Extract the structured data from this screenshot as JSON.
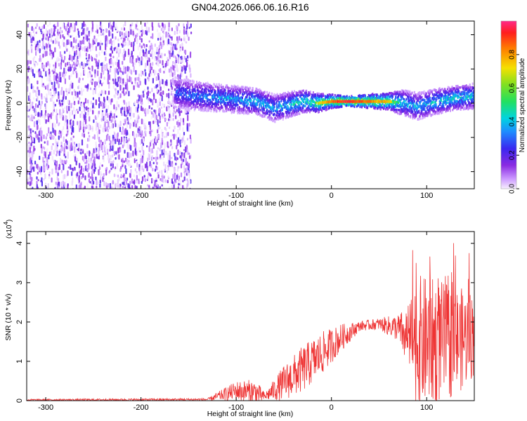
{
  "title": "GN04.2026.066.06.16.R16",
  "chart_data": [
    {
      "type": "heatmap",
      "xlabel": "Height of straight line (km)",
      "ylabel": "Frequency (Hz)",
      "xlim": [
        -320,
        150
      ],
      "ylim": [
        -50,
        48
      ],
      "xticks": [
        -300,
        -200,
        -100,
        0,
        100
      ],
      "yticks": [
        -40,
        -20,
        0,
        20,
        40
      ],
      "colorbar": {
        "label": "Normalized spectral amplitude",
        "range": [
          0,
          1
        ],
        "ticks": [
          "0.0",
          "0.2",
          "0.4",
          "0.6",
          "0.8"
        ]
      },
      "noise_region": [
        -320,
        -148
      ],
      "signal_ridge": [
        {
          "x": -165,
          "y": 6,
          "amp": 0.35
        },
        {
          "x": -140,
          "y": 4,
          "amp": 0.4
        },
        {
          "x": -120,
          "y": 3,
          "amp": 0.45
        },
        {
          "x": -100,
          "y": 2,
          "amp": 0.45
        },
        {
          "x": -80,
          "y": 1,
          "amp": 0.5
        },
        {
          "x": -60,
          "y": -3,
          "amp": 0.45
        },
        {
          "x": -45,
          "y": -1,
          "amp": 0.5
        },
        {
          "x": -30,
          "y": 1,
          "amp": 0.6
        },
        {
          "x": -15,
          "y": 0,
          "amp": 0.7
        },
        {
          "x": 0,
          "y": 1,
          "amp": 0.85
        },
        {
          "x": 15,
          "y": 1,
          "amp": 0.95
        },
        {
          "x": 30,
          "y": 1,
          "amp": 0.9
        },
        {
          "x": 45,
          "y": 1,
          "amp": 0.8
        },
        {
          "x": 60,
          "y": 1,
          "amp": 0.75
        },
        {
          "x": 75,
          "y": 0,
          "amp": 0.5
        },
        {
          "x": 90,
          "y": -2,
          "amp": 0.45
        },
        {
          "x": 110,
          "y": 1,
          "amp": 0.5
        },
        {
          "x": 130,
          "y": 3,
          "amp": 0.55
        },
        {
          "x": 150,
          "y": 4,
          "amp": 0.5
        }
      ]
    },
    {
      "type": "line",
      "xlabel": "Height of straight line (km)",
      "ylabel": "SNR (10 * v/v)",
      "multiplier": "(x10",
      "multiplier_exp": "4",
      "multiplier_close": ")",
      "xlim": [
        -320,
        150
      ],
      "ylim": [
        0,
        4.3
      ],
      "xticks": [
        -300,
        -200,
        -100,
        0,
        100
      ],
      "yticks": [
        0,
        1,
        2,
        3,
        4
      ],
      "color": "#ee3333",
      "envelope": [
        {
          "x": -320,
          "base": 0.02,
          "amp": 0.02
        },
        {
          "x": -130,
          "base": 0.03,
          "amp": 0.03
        },
        {
          "x": -118,
          "base": 0.12,
          "amp": 0.12
        },
        {
          "x": -100,
          "base": 0.25,
          "amp": 0.25
        },
        {
          "x": -80,
          "base": 0.2,
          "amp": 0.35
        },
        {
          "x": -70,
          "base": 0.1,
          "amp": 0.1
        },
        {
          "x": -50,
          "base": 0.45,
          "amp": 0.45
        },
        {
          "x": -30,
          "base": 0.8,
          "amp": 0.6
        },
        {
          "x": -10,
          "base": 1.2,
          "amp": 0.55
        },
        {
          "x": 10,
          "base": 1.6,
          "amp": 0.35
        },
        {
          "x": 30,
          "base": 1.9,
          "amp": 0.12
        },
        {
          "x": 50,
          "base": 1.95,
          "amp": 0.15
        },
        {
          "x": 70,
          "base": 1.85,
          "amp": 0.35
        },
        {
          "x": 80,
          "base": 1.6,
          "amp": 0.8
        },
        {
          "x": 90,
          "base": 1.5,
          "amp": 1.7
        },
        {
          "x": 110,
          "base": 1.5,
          "amp": 1.6
        },
        {
          "x": 130,
          "base": 1.5,
          "amp": 1.4
        },
        {
          "x": 150,
          "base": 1.7,
          "amp": 1.1
        }
      ]
    }
  ]
}
